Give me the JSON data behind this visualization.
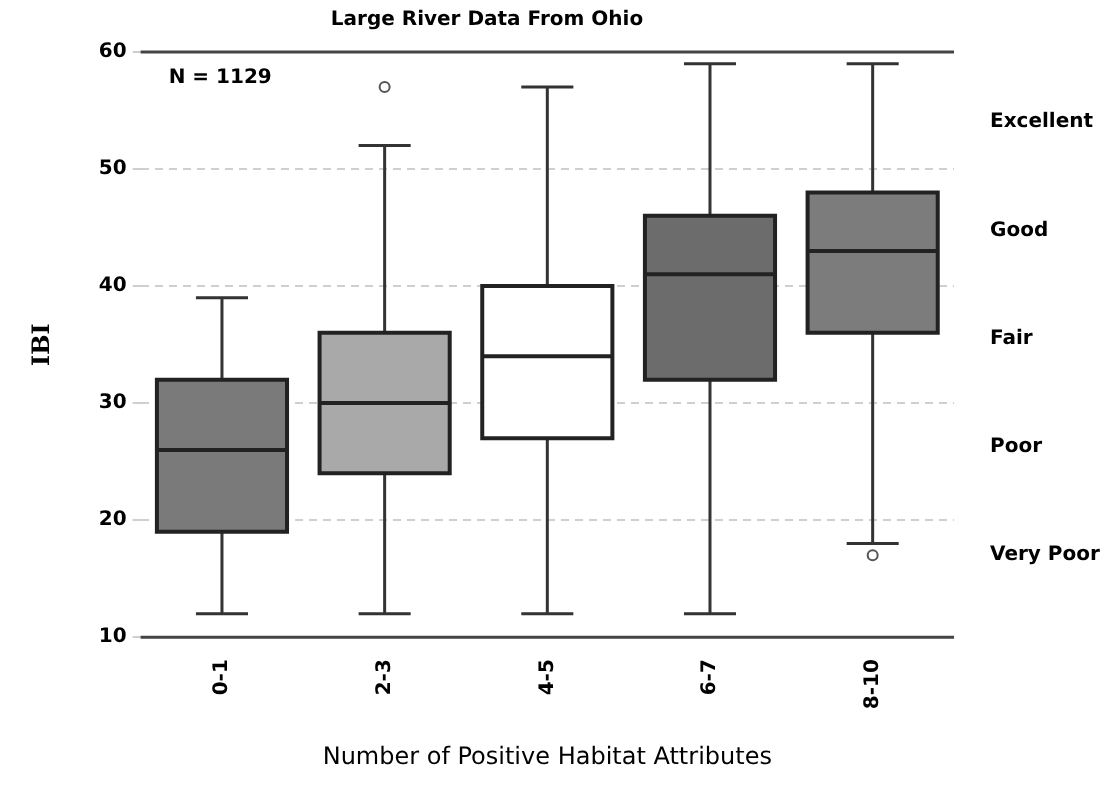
{
  "chart_data": {
    "type": "box",
    "title": "Large River Data From Ohio",
    "xlabel": "Number of Positive Habitat Attributes",
    "ylabel": "IBI",
    "categories": [
      "0-1",
      "2-3",
      "4-5",
      "6-7",
      "8-10"
    ],
    "colors": [
      "#7a7a7a",
      "#a9a9a9",
      "#ffffff",
      "#6c6c6c",
      "#7c7c7c"
    ],
    "boxes": [
      {
        "low": 12,
        "q1": 19,
        "median": 26,
        "q3": 32,
        "high": 39
      },
      {
        "low": 12,
        "q1": 24,
        "median": 30,
        "q3": 36,
        "high": 52,
        "outliers": [
          57
        ]
      },
      {
        "low": 12,
        "q1": 27,
        "median": 34,
        "q3": 40,
        "high": 57
      },
      {
        "low": 12,
        "q1": 32,
        "median": 41,
        "q3": 46,
        "high": 59
      },
      {
        "low": 18,
        "q1": 36,
        "median": 43,
        "q3": 48,
        "high": 59,
        "outliers": [
          17
        ]
      }
    ],
    "ylim": [
      10,
      60
    ],
    "yticks": [
      10,
      20,
      30,
      40,
      50,
      60
    ],
    "annotations": [
      "N = 1129",
      "Excellent",
      "Good",
      "Fair",
      "Poor",
      "Very Poor"
    ],
    "grid": "y",
    "legend": false
  }
}
